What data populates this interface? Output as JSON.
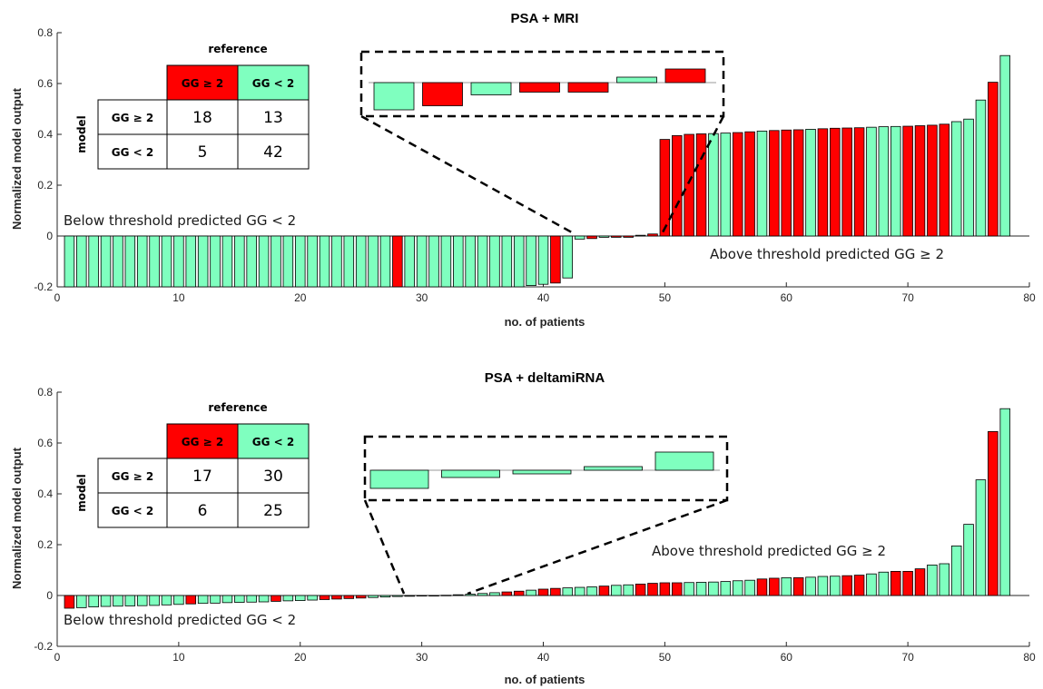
{
  "colors": {
    "positive": "#ff0000",
    "negative": "#7fffbf",
    "stroke": "#000000"
  },
  "chart_data": [
    {
      "type": "bar",
      "title": "PSA + MRI",
      "xlabel": "no. of patients",
      "ylabel": "Normalized model output",
      "xlim": [
        0,
        80
      ],
      "ylim": [
        -0.2,
        0.8
      ],
      "xticks": [
        "0",
        "10",
        "20",
        "30",
        "40",
        "50",
        "60",
        "70",
        "80"
      ],
      "yticks": [
        "-0.2",
        "0",
        "0.2",
        "0.4",
        "0.6",
        "0.8"
      ],
      "x": [
        1,
        2,
        3,
        4,
        5,
        6,
        7,
        8,
        9,
        10,
        11,
        12,
        13,
        14,
        15,
        16,
        17,
        18,
        19,
        20,
        21,
        22,
        23,
        24,
        25,
        26,
        27,
        28,
        29,
        30,
        31,
        32,
        33,
        34,
        35,
        36,
        37,
        38,
        39,
        40,
        41,
        42,
        43,
        44,
        45,
        46,
        47,
        48,
        49,
        50,
        51,
        52,
        53,
        54,
        55,
        56,
        57,
        58,
        59,
        60,
        61,
        62,
        63,
        64,
        65,
        66,
        67,
        68,
        69,
        70,
        71,
        72,
        73,
        74,
        75,
        76,
        77,
        78
      ],
      "values": [
        -0.2,
        -0.2,
        -0.2,
        -0.2,
        -0.2,
        -0.2,
        -0.2,
        -0.2,
        -0.2,
        -0.2,
        -0.2,
        -0.2,
        -0.2,
        -0.2,
        -0.2,
        -0.2,
        -0.2,
        -0.2,
        -0.2,
        -0.2,
        -0.2,
        -0.2,
        -0.2,
        -0.2,
        -0.2,
        -0.2,
        -0.2,
        -0.2,
        -0.2,
        -0.2,
        -0.2,
        -0.2,
        -0.2,
        -0.2,
        -0.2,
        -0.2,
        -0.2,
        -0.2,
        -0.195,
        -0.19,
        -0.185,
        -0.165,
        -0.012,
        -0.01,
        -0.005,
        -0.005,
        -0.005,
        0.003,
        0.008,
        0.38,
        0.395,
        0.4,
        0.402,
        0.403,
        0.405,
        0.407,
        0.41,
        0.413,
        0.415,
        0.417,
        0.418,
        0.42,
        0.422,
        0.424,
        0.425,
        0.426,
        0.428,
        0.43,
        0.431,
        0.432,
        0.434,
        0.436,
        0.44,
        0.45,
        0.46,
        0.535,
        0.605,
        0.71
      ],
      "classes": [
        "n",
        "n",
        "n",
        "n",
        "n",
        "n",
        "n",
        "n",
        "n",
        "n",
        "n",
        "n",
        "n",
        "n",
        "n",
        "n",
        "n",
        "n",
        "n",
        "n",
        "n",
        "n",
        "n",
        "n",
        "n",
        "n",
        "n",
        "p",
        "n",
        "n",
        "n",
        "n",
        "n",
        "n",
        "n",
        "n",
        "n",
        "n",
        "n",
        "n",
        "p",
        "n",
        "n",
        "p",
        "n",
        "p",
        "p",
        "n",
        "p",
        "p",
        "p",
        "p",
        "p",
        "n",
        "n",
        "p",
        "p",
        "n",
        "p",
        "p",
        "p",
        "n",
        "p",
        "p",
        "p",
        "p",
        "n",
        "n",
        "n",
        "p",
        "p",
        "p",
        "p",
        "n",
        "n",
        "n",
        "p",
        "n"
      ],
      "annotations": [
        "Below threshold predicted GG < 2",
        "Above threshold predicted GG ≥ 2"
      ],
      "inset": {
        "bars": [
          -0.1,
          -0.085,
          -0.045,
          -0.035,
          -0.035,
          0.02,
          0.05
        ],
        "classes": [
          "n",
          "p",
          "n",
          "p",
          "p",
          "n",
          "p"
        ]
      },
      "confusion_matrix": {
        "reference_label": "reference",
        "model_label": "model",
        "columns": [
          "GG ≥ 2",
          "GG < 2"
        ],
        "rows": [
          "GG ≥ 2",
          "GG < 2"
        ],
        "values": [
          [
            18,
            13
          ],
          [
            5,
            42
          ]
        ]
      }
    },
    {
      "type": "bar",
      "title": "PSA + deltamiRNA",
      "xlabel": "no. of patients",
      "ylabel": "Normalized model output",
      "xlim": [
        0,
        80
      ],
      "ylim": [
        -0.2,
        0.8
      ],
      "xticks": [
        "0",
        "10",
        "20",
        "30",
        "40",
        "50",
        "60",
        "70",
        "80"
      ],
      "yticks": [
        "-0.2",
        "0",
        "0.2",
        "0.4",
        "0.6",
        "0.8"
      ],
      "x": [
        1,
        2,
        3,
        4,
        5,
        6,
        7,
        8,
        9,
        10,
        11,
        12,
        13,
        14,
        15,
        16,
        17,
        18,
        19,
        20,
        21,
        22,
        23,
        24,
        25,
        26,
        27,
        28,
        29,
        30,
        31,
        32,
        33,
        34,
        35,
        36,
        37,
        38,
        39,
        40,
        41,
        42,
        43,
        44,
        45,
        46,
        47,
        48,
        49,
        50,
        51,
        52,
        53,
        54,
        55,
        56,
        57,
        58,
        59,
        60,
        61,
        62,
        63,
        64,
        65,
        66,
        67,
        68,
        69,
        70,
        71,
        72,
        73,
        74,
        75,
        76,
        77,
        78
      ],
      "values": [
        -0.05,
        -0.048,
        -0.045,
        -0.043,
        -0.042,
        -0.041,
        -0.04,
        -0.039,
        -0.037,
        -0.035,
        -0.033,
        -0.031,
        -0.03,
        -0.028,
        -0.027,
        -0.026,
        -0.025,
        -0.023,
        -0.021,
        -0.02,
        -0.018,
        -0.016,
        -0.014,
        -0.012,
        -0.01,
        -0.008,
        -0.006,
        -0.004,
        -0.003,
        -0.002,
        -0.001,
        0.001,
        0.003,
        0.005,
        0.008,
        0.011,
        0.014,
        0.017,
        0.021,
        0.025,
        0.028,
        0.03,
        0.032,
        0.034,
        0.037,
        0.04,
        0.042,
        0.045,
        0.048,
        0.05,
        0.05,
        0.051,
        0.052,
        0.053,
        0.055,
        0.058,
        0.06,
        0.065,
        0.068,
        0.07,
        0.07,
        0.072,
        0.075,
        0.076,
        0.078,
        0.08,
        0.085,
        0.092,
        0.095,
        0.095,
        0.105,
        0.12,
        0.125,
        0.195,
        0.28,
        0.455,
        0.645,
        0.735
      ],
      "classes": [
        "p",
        "n",
        "n",
        "n",
        "n",
        "n",
        "n",
        "n",
        "n",
        "n",
        "p",
        "n",
        "n",
        "n",
        "n",
        "n",
        "n",
        "p",
        "n",
        "n",
        "n",
        "p",
        "p",
        "p",
        "p",
        "n",
        "n",
        "n",
        "n",
        "n",
        "n",
        "p",
        "n",
        "n",
        "n",
        "n",
        "p",
        "p",
        "n",
        "p",
        "p",
        "n",
        "n",
        "n",
        "p",
        "n",
        "n",
        "p",
        "p",
        "p",
        "p",
        "n",
        "n",
        "n",
        "n",
        "n",
        "n",
        "p",
        "p",
        "n",
        "p",
        "n",
        "n",
        "n",
        "p",
        "p",
        "n",
        "n",
        "p",
        "p",
        "p",
        "n",
        "n",
        "n",
        "n",
        "n",
        "p",
        "n"
      ],
      "annotations": [
        "Above threshold predicted GG ≥ 2",
        "Below threshold predicted GG < 2"
      ],
      "inset": {
        "bars": [
          -0.05,
          -0.02,
          -0.01,
          0.01,
          0.05
        ],
        "classes": [
          "n",
          "n",
          "n",
          "n",
          "n"
        ]
      },
      "confusion_matrix": {
        "reference_label": "reference",
        "model_label": "model",
        "columns": [
          "GG ≥ 2",
          "GG < 2"
        ],
        "rows": [
          "GG ≥ 2",
          "GG < 2"
        ],
        "values": [
          [
            17,
            30
          ],
          [
            6,
            25
          ]
        ]
      }
    }
  ]
}
